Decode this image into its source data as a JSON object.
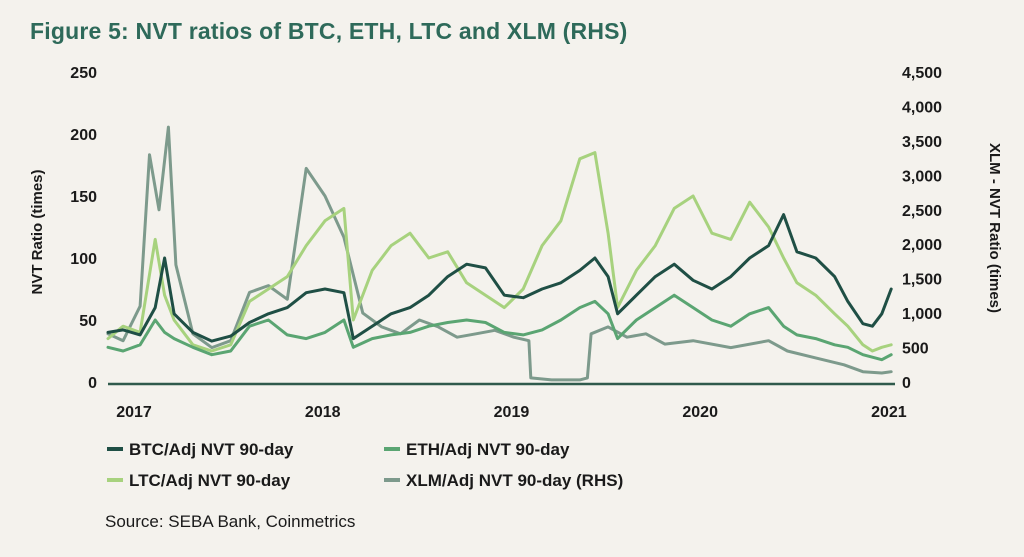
{
  "chart_data": {
    "type": "line",
    "title": "Figure 5: NVT ratios of BTC, ETH, LTC and XLM (RHS)",
    "ylabel": "NVT Ratio (times)",
    "y2label": "XLM - NVT Ratio (times)",
    "ylim": [
      0,
      250
    ],
    "y2lim": [
      0,
      4500
    ],
    "yticks": [
      "0",
      "50",
      "100",
      "150",
      "200",
      "250"
    ],
    "y2ticks": [
      "0",
      "500",
      "1,000",
      "1,500",
      "2,000",
      "2,500",
      "3,000",
      "3,500",
      "4,000",
      "4,500"
    ],
    "xlim": [
      2017.0,
      2021.17
    ],
    "xticks": [
      {
        "label": "2017",
        "value": 2017.0
      },
      {
        "label": "2018",
        "value": 2018.0
      },
      {
        "label": "2019",
        "value": 2019.0
      },
      {
        "label": "2020",
        "value": 2020.0
      },
      {
        "label": "2021",
        "value": 2021.0
      }
    ],
    "source": "Source: SEBA Bank, Coinmetrics",
    "series": [
      {
        "name": "BTC/Adj NVT 90-day",
        "axis": "left",
        "color": "#1f4f45",
        "x": [
          2017.0,
          2017.08,
          2017.17,
          2017.25,
          2017.3,
          2017.35,
          2017.45,
          2017.55,
          2017.65,
          2017.75,
          2017.85,
          2017.95,
          2018.05,
          2018.15,
          2018.25,
          2018.3,
          2018.4,
          2018.5,
          2018.6,
          2018.7,
          2018.8,
          2018.9,
          2019.0,
          2019.1,
          2019.2,
          2019.3,
          2019.4,
          2019.5,
          2019.58,
          2019.65,
          2019.7,
          2019.8,
          2019.9,
          2020.0,
          2020.1,
          2020.2,
          2020.3,
          2020.4,
          2020.5,
          2020.58,
          2020.65,
          2020.75,
          2020.85,
          2020.92,
          2021.0,
          2021.05,
          2021.1,
          2021.15
        ],
        "y": [
          40,
          42,
          38,
          60,
          100,
          55,
          40,
          33,
          37,
          48,
          55,
          60,
          72,
          75,
          72,
          35,
          45,
          55,
          60,
          70,
          85,
          95,
          92,
          70,
          68,
          75,
          80,
          90,
          100,
          85,
          55,
          70,
          85,
          95,
          82,
          75,
          85,
          100,
          110,
          135,
          105,
          100,
          85,
          65,
          47,
          45,
          55,
          75
        ]
      },
      {
        "name": "ETH/Adj NVT 90-day",
        "axis": "left",
        "color": "#5aa572",
        "x": [
          2017.0,
          2017.08,
          2017.17,
          2017.25,
          2017.3,
          2017.35,
          2017.45,
          2017.55,
          2017.65,
          2017.75,
          2017.85,
          2017.95,
          2018.05,
          2018.15,
          2018.25,
          2018.3,
          2018.4,
          2018.5,
          2018.6,
          2018.7,
          2018.8,
          2018.9,
          2019.0,
          2019.1,
          2019.2,
          2019.3,
          2019.4,
          2019.5,
          2019.58,
          2019.65,
          2019.7,
          2019.8,
          2019.9,
          2020.0,
          2020.1,
          2020.2,
          2020.3,
          2020.4,
          2020.5,
          2020.58,
          2020.65,
          2020.75,
          2020.85,
          2020.92,
          2021.0,
          2021.05,
          2021.1,
          2021.15
        ],
        "y": [
          28,
          25,
          30,
          50,
          40,
          35,
          28,
          22,
          25,
          45,
          50,
          38,
          35,
          40,
          50,
          28,
          35,
          38,
          40,
          45,
          48,
          50,
          48,
          40,
          38,
          42,
          50,
          60,
          65,
          55,
          35,
          50,
          60,
          70,
          60,
          50,
          45,
          55,
          60,
          45,
          38,
          35,
          30,
          28,
          22,
          20,
          18,
          22
        ]
      },
      {
        "name": "LTC/Adj NVT 90-day",
        "axis": "left",
        "color": "#a7d27e",
        "x": [
          2017.0,
          2017.08,
          2017.17,
          2017.25,
          2017.3,
          2017.35,
          2017.45,
          2017.55,
          2017.65,
          2017.75,
          2017.85,
          2017.95,
          2018.05,
          2018.15,
          2018.25,
          2018.3,
          2018.4,
          2018.5,
          2018.6,
          2018.7,
          2018.8,
          2018.9,
          2019.0,
          2019.1,
          2019.2,
          2019.3,
          2019.4,
          2019.5,
          2019.58,
          2019.65,
          2019.7,
          2019.8,
          2019.9,
          2020.0,
          2020.1,
          2020.2,
          2020.3,
          2020.4,
          2020.5,
          2020.58,
          2020.65,
          2020.75,
          2020.85,
          2020.92,
          2021.0,
          2021.05,
          2021.1,
          2021.15
        ],
        "y": [
          35,
          45,
          40,
          115,
          70,
          50,
          30,
          25,
          30,
          65,
          75,
          85,
          110,
          130,
          140,
          50,
          90,
          110,
          120,
          100,
          105,
          80,
          70,
          60,
          75,
          110,
          130,
          180,
          185,
          120,
          60,
          90,
          110,
          140,
          150,
          120,
          115,
          145,
          125,
          100,
          80,
          70,
          55,
          45,
          30,
          25,
          28,
          30
        ]
      },
      {
        "name": "XLM/Adj NVT 90-day (RHS)",
        "axis": "right",
        "color": "#7d9a8c",
        "x": [
          2017.0,
          2017.08,
          2017.17,
          2017.22,
          2017.27,
          2017.32,
          2017.36,
          2017.45,
          2017.55,
          2017.65,
          2017.75,
          2017.85,
          2017.95,
          2018.05,
          2018.15,
          2018.25,
          2018.35,
          2018.45,
          2018.55,
          2018.65,
          2018.75,
          2018.85,
          2018.95,
          2019.05,
          2019.15,
          2019.23,
          2019.24,
          2019.35,
          2019.5,
          2019.54,
          2019.56,
          2019.65,
          2019.75,
          2019.85,
          2019.95,
          2020.1,
          2020.3,
          2020.5,
          2020.6,
          2020.75,
          2020.9,
          2021.0,
          2021.1,
          2021.15
        ],
        "y": [
          700,
          600,
          1100,
          3300,
          2500,
          3700,
          1700,
          700,
          500,
          600,
          1300,
          1400,
          1200,
          3100,
          2700,
          2100,
          1000,
          800,
          700,
          900,
          800,
          650,
          700,
          750,
          650,
          600,
          60,
          30,
          30,
          60,
          700,
          800,
          650,
          700,
          550,
          600,
          500,
          600,
          450,
          350,
          250,
          150,
          130,
          150
        ]
      }
    ]
  }
}
